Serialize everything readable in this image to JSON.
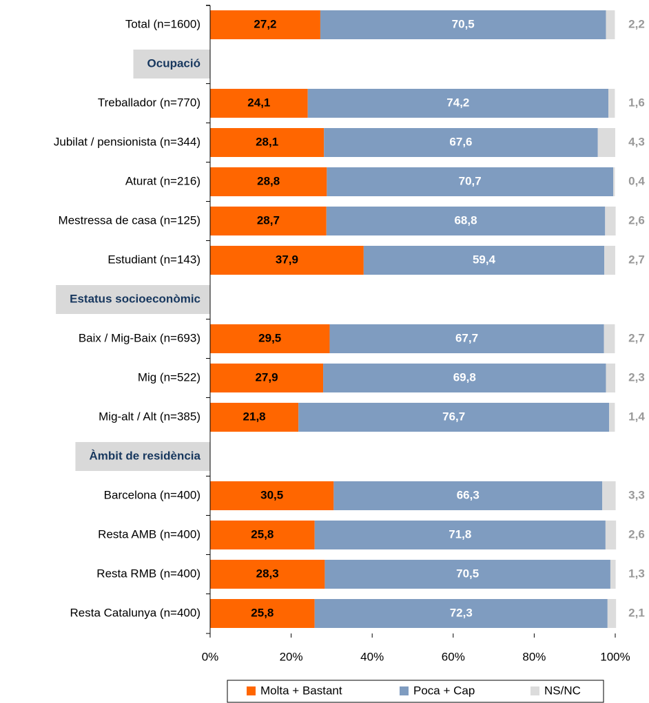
{
  "chart_data": {
    "type": "stacked_bar_horizontal",
    "categories": [
      "Total (n=1600)",
      "Ocupació",
      "Treballador (n=770)",
      "Jubilat / pensionista (n=344)",
      "Aturat (n=216)",
      "Mestressa de casa (n=125)",
      "Estudiant (n=143)",
      "Estatus socioeconòmic",
      "Baix / Mig-Baix (n=693)",
      "Mig (n=522)",
      "Mig-alt / Alt (n=385)",
      "Àmbit de residència",
      "Barcelona (n=400)",
      "Resta AMB (n=400)",
      "Resta RMB (n=400)",
      "Resta Catalunya (n=400)"
    ],
    "series": [
      {
        "name": "Molta + Bastant",
        "color": "#ff6600",
        "values": [
          27.2,
          null,
          24.1,
          28.1,
          28.8,
          28.7,
          37.9,
          null,
          29.5,
          27.9,
          21.8,
          null,
          30.5,
          25.8,
          28.3,
          25.8
        ],
        "value_labels": [
          "27,2",
          null,
          "24,1",
          "28,1",
          "28,8",
          "28,7",
          "37,9",
          null,
          "29,5",
          "27,9",
          "21,8",
          null,
          "30,5",
          "25,8",
          "28,3",
          "25,8"
        ]
      },
      {
        "name": "Poca + Cap",
        "color": "#7f9cc0",
        "values": [
          70.5,
          null,
          74.2,
          67.6,
          70.7,
          68.8,
          59.4,
          null,
          67.7,
          69.8,
          76.7,
          null,
          66.3,
          71.8,
          70.5,
          72.3
        ],
        "value_labels": [
          "70,5",
          null,
          "74,2",
          "67,6",
          "70,7",
          "68,8",
          "59,4",
          null,
          "67,7",
          "69,8",
          "76,7",
          null,
          "66,3",
          "71,8",
          "70,5",
          "72,3"
        ]
      },
      {
        "name": "NS/NC",
        "color": "#dcdcdc",
        "values": [
          2.2,
          null,
          1.6,
          4.3,
          0.4,
          2.6,
          2.7,
          null,
          2.7,
          2.3,
          1.4,
          null,
          3.3,
          2.6,
          1.3,
          2.1
        ],
        "value_labels": [
          "2,2",
          null,
          "1,6",
          "4,3",
          "0,4",
          "2,6",
          "2,7",
          null,
          "2,7",
          "2,3",
          "1,4",
          null,
          "3,3",
          "2,6",
          "1,3",
          "2,1"
        ]
      }
    ],
    "xlim": [
      0,
      100
    ],
    "xticks": [
      {
        "value": 0,
        "label": "0%"
      },
      {
        "value": 20,
        "label": "20%"
      },
      {
        "value": 40,
        "label": "40%"
      },
      {
        "value": 60,
        "label": "60%"
      },
      {
        "value": 80,
        "label": "80%"
      },
      {
        "value": 100,
        "label": "100%"
      }
    ],
    "legend": "bottom"
  }
}
